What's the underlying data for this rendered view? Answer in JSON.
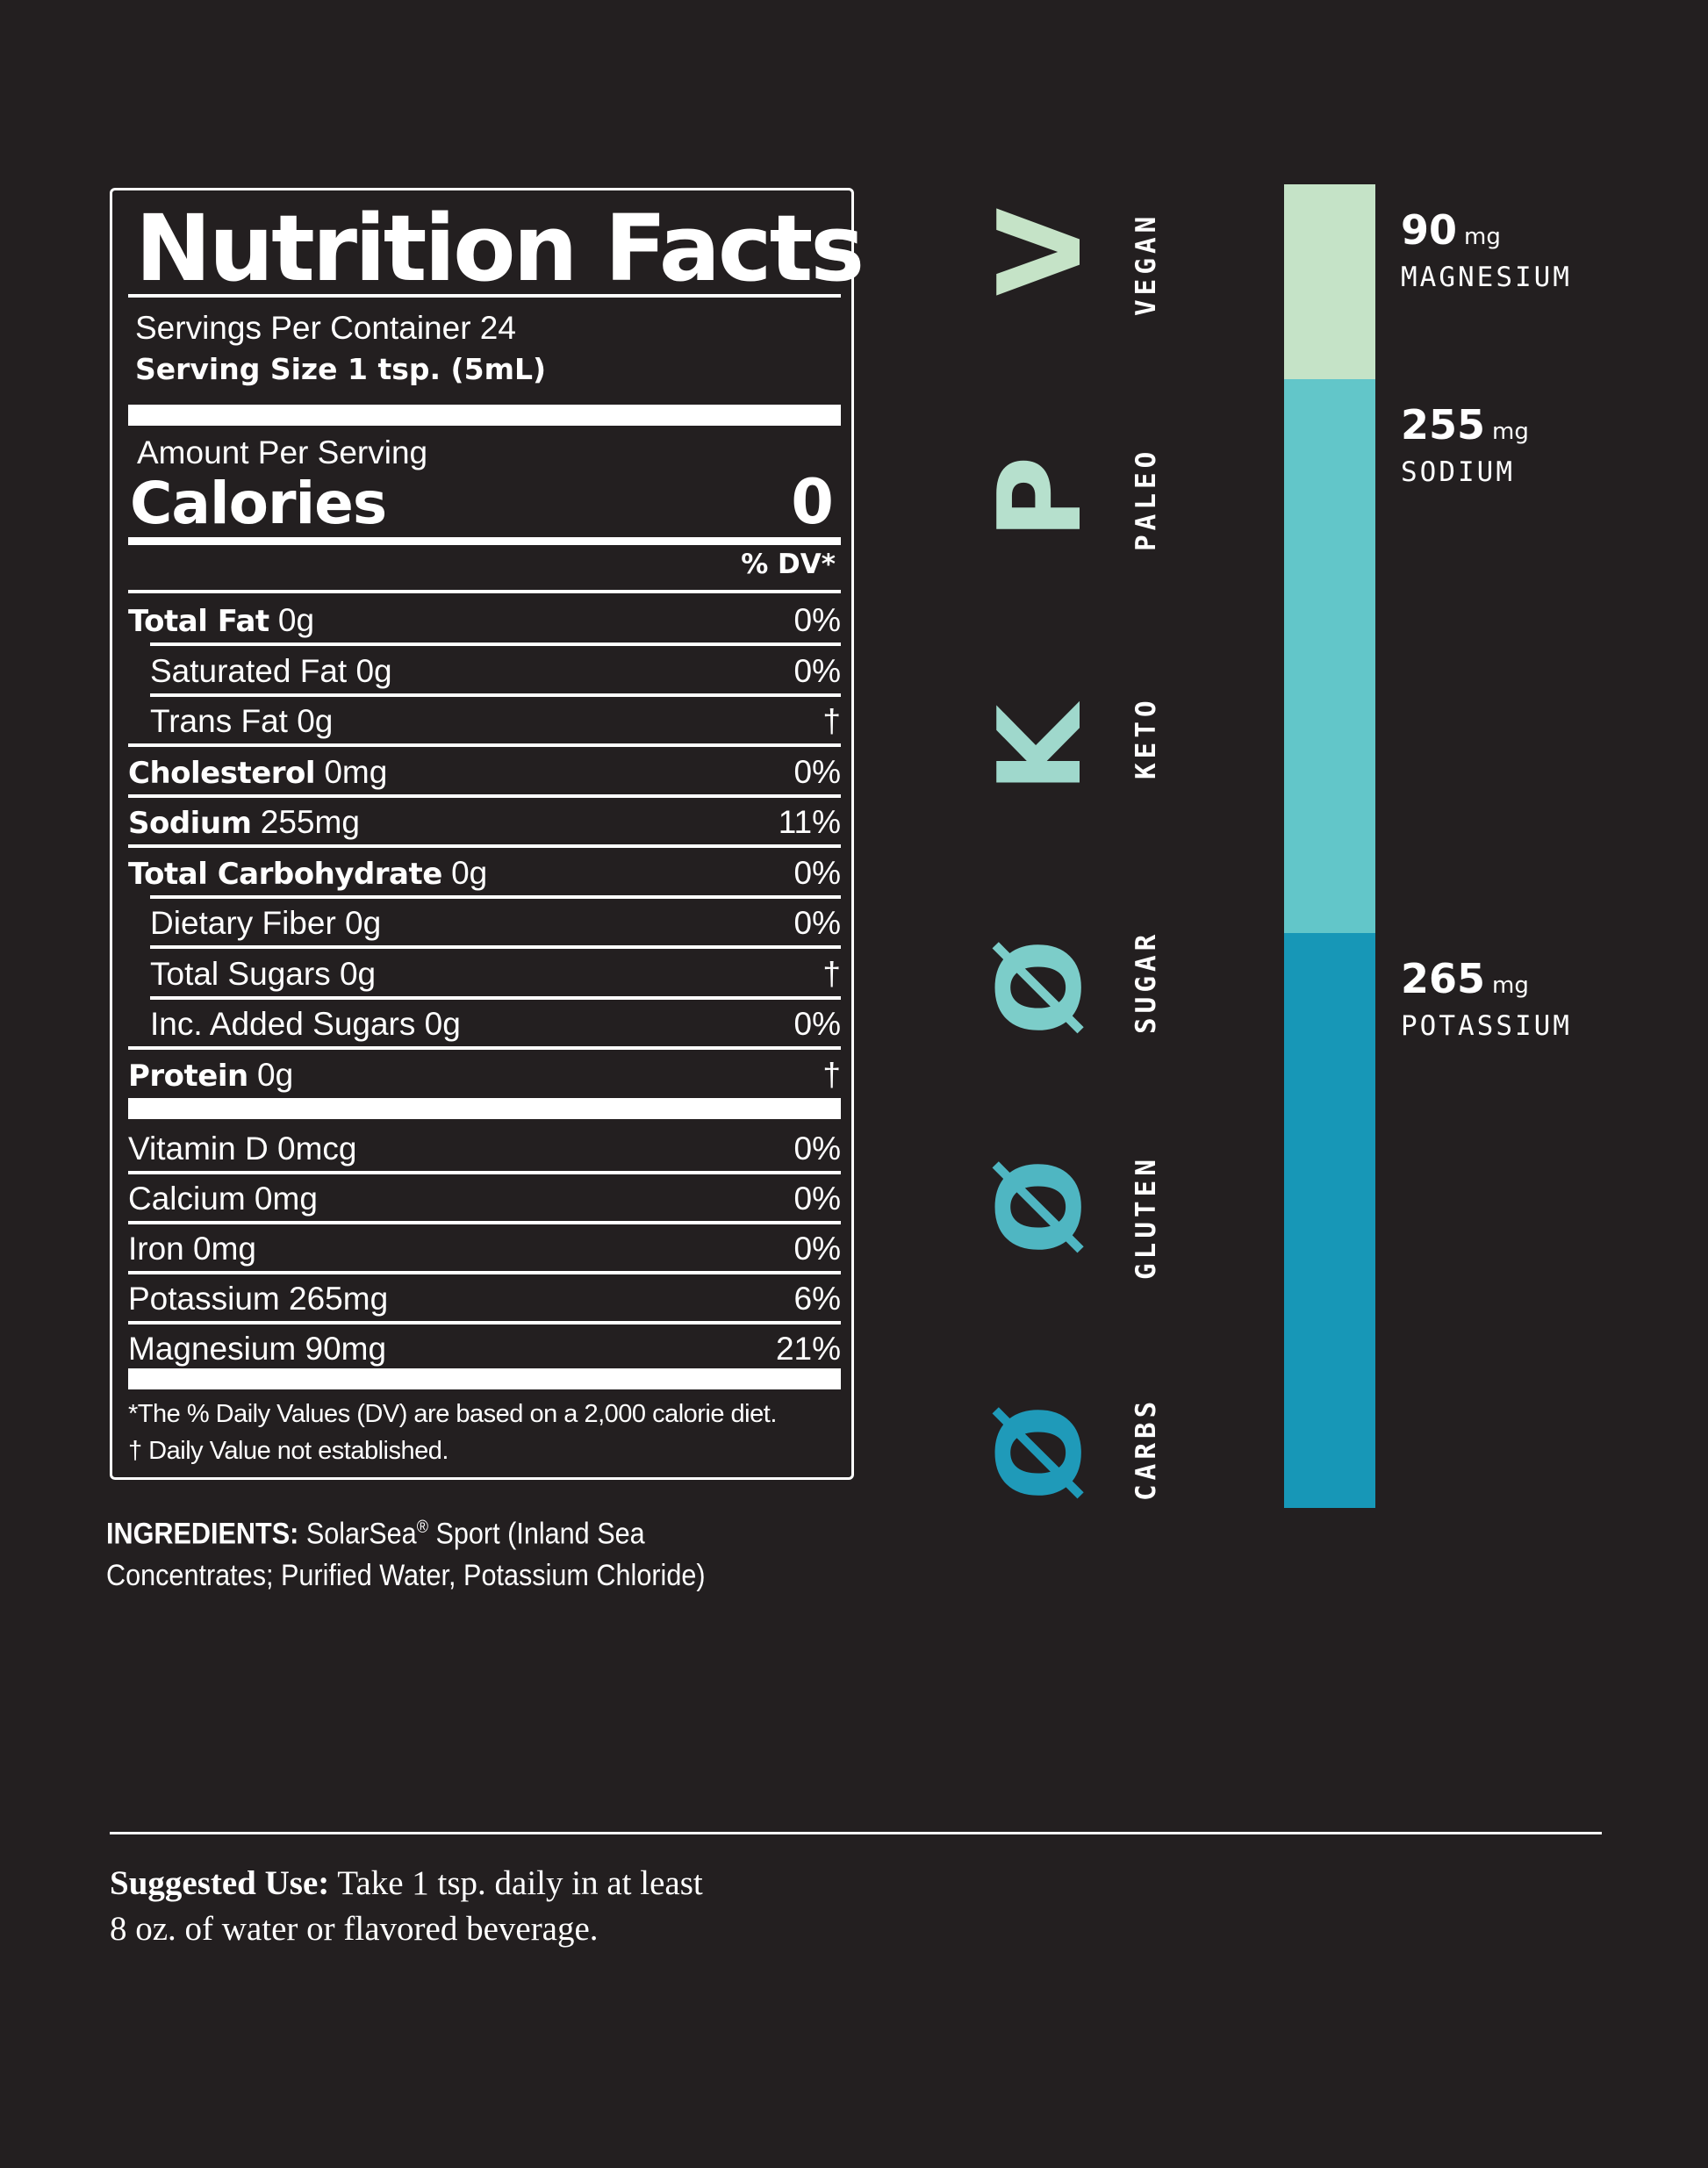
{
  "nutrition": {
    "title": "Nutrition Facts",
    "servings_per_container": "Servings Per Container 24",
    "serving_size": "Serving Size 1 tsp. (5mL)",
    "amount_per_serving": "Amount Per Serving",
    "calories_label": "Calories",
    "calories_value": "0",
    "dv_header": "% DV*",
    "rows": [
      {
        "bold": "Total Fat",
        "rest": " 0g",
        "pct": "0%"
      },
      {
        "bold": "",
        "rest": "Saturated Fat 0g",
        "pct": "0%"
      },
      {
        "bold": "",
        "rest": "Trans Fat 0g",
        "pct": "†"
      },
      {
        "bold": "Cholesterol",
        "rest": " 0mg",
        "pct": "0%"
      },
      {
        "bold": "Sodium",
        "rest": " 255mg",
        "pct": "11%"
      },
      {
        "bold": "Total Carbohydrate",
        "rest": " 0g",
        "pct": "0%"
      },
      {
        "bold": "",
        "rest": "Dietary Fiber 0g",
        "pct": "0%"
      },
      {
        "bold": "",
        "rest": "Total Sugars 0g",
        "pct": "†"
      },
      {
        "bold": "",
        "rest": "Inc. Added Sugars 0g",
        "pct": "0%"
      },
      {
        "bold": "Protein",
        "rest": " 0g",
        "pct": "†"
      }
    ],
    "vitamins": [
      {
        "name": "Vitamin D 0mcg",
        "pct": "0%"
      },
      {
        "name": "Calcium 0mg",
        "pct": "0%"
      },
      {
        "name": "Iron 0mg",
        "pct": "0%"
      },
      {
        "name": "Potassium 265mg",
        "pct": "6%"
      },
      {
        "name": "Magnesium 90mg",
        "pct": "21%"
      }
    ],
    "footnote_1": "*The % Daily Values (DV) are based on a 2,000 calorie diet.",
    "footnote_2": "† Daily Value not established."
  },
  "ingredients": {
    "label": "INGREDIENTS:",
    "text_1": " SolarSea",
    "registered": "®",
    "text_2": " Sport (Inland Sea Concentrates; Purified Water, Potassium Chloride)"
  },
  "diet_badges": [
    {
      "glyph": "V",
      "label": "VEGAN",
      "color": "#c5e3c7"
    },
    {
      "glyph": "P",
      "label": "PALEO",
      "color": "#b6e0cd"
    },
    {
      "glyph": "K",
      "label": "KETO",
      "color": "#9fd8cc"
    },
    {
      "glyph": "Ø",
      "label": "SUGAR",
      "color": "#7ccdc9"
    },
    {
      "glyph": "Ø",
      "label": "GLUTEN",
      "color": "#4fb6c2"
    },
    {
      "glyph": "Ø",
      "label": "CARBS",
      "color": "#1f9ab9"
    }
  ],
  "minerals": [
    {
      "amount": "90",
      "unit": "mg",
      "name": "MAGNESIUM",
      "color": "#c5e3c7"
    },
    {
      "amount": "255",
      "unit": "mg",
      "name": "SODIUM",
      "color": "#62c6c9"
    },
    {
      "amount": "265",
      "unit": "mg",
      "name": "POTASSIUM",
      "color": "#1797b7"
    }
  ],
  "suggested_use": {
    "label": "Suggested Use:",
    "text": " Take 1 tsp. daily in at least 8 oz. of water or flavored beverage."
  }
}
